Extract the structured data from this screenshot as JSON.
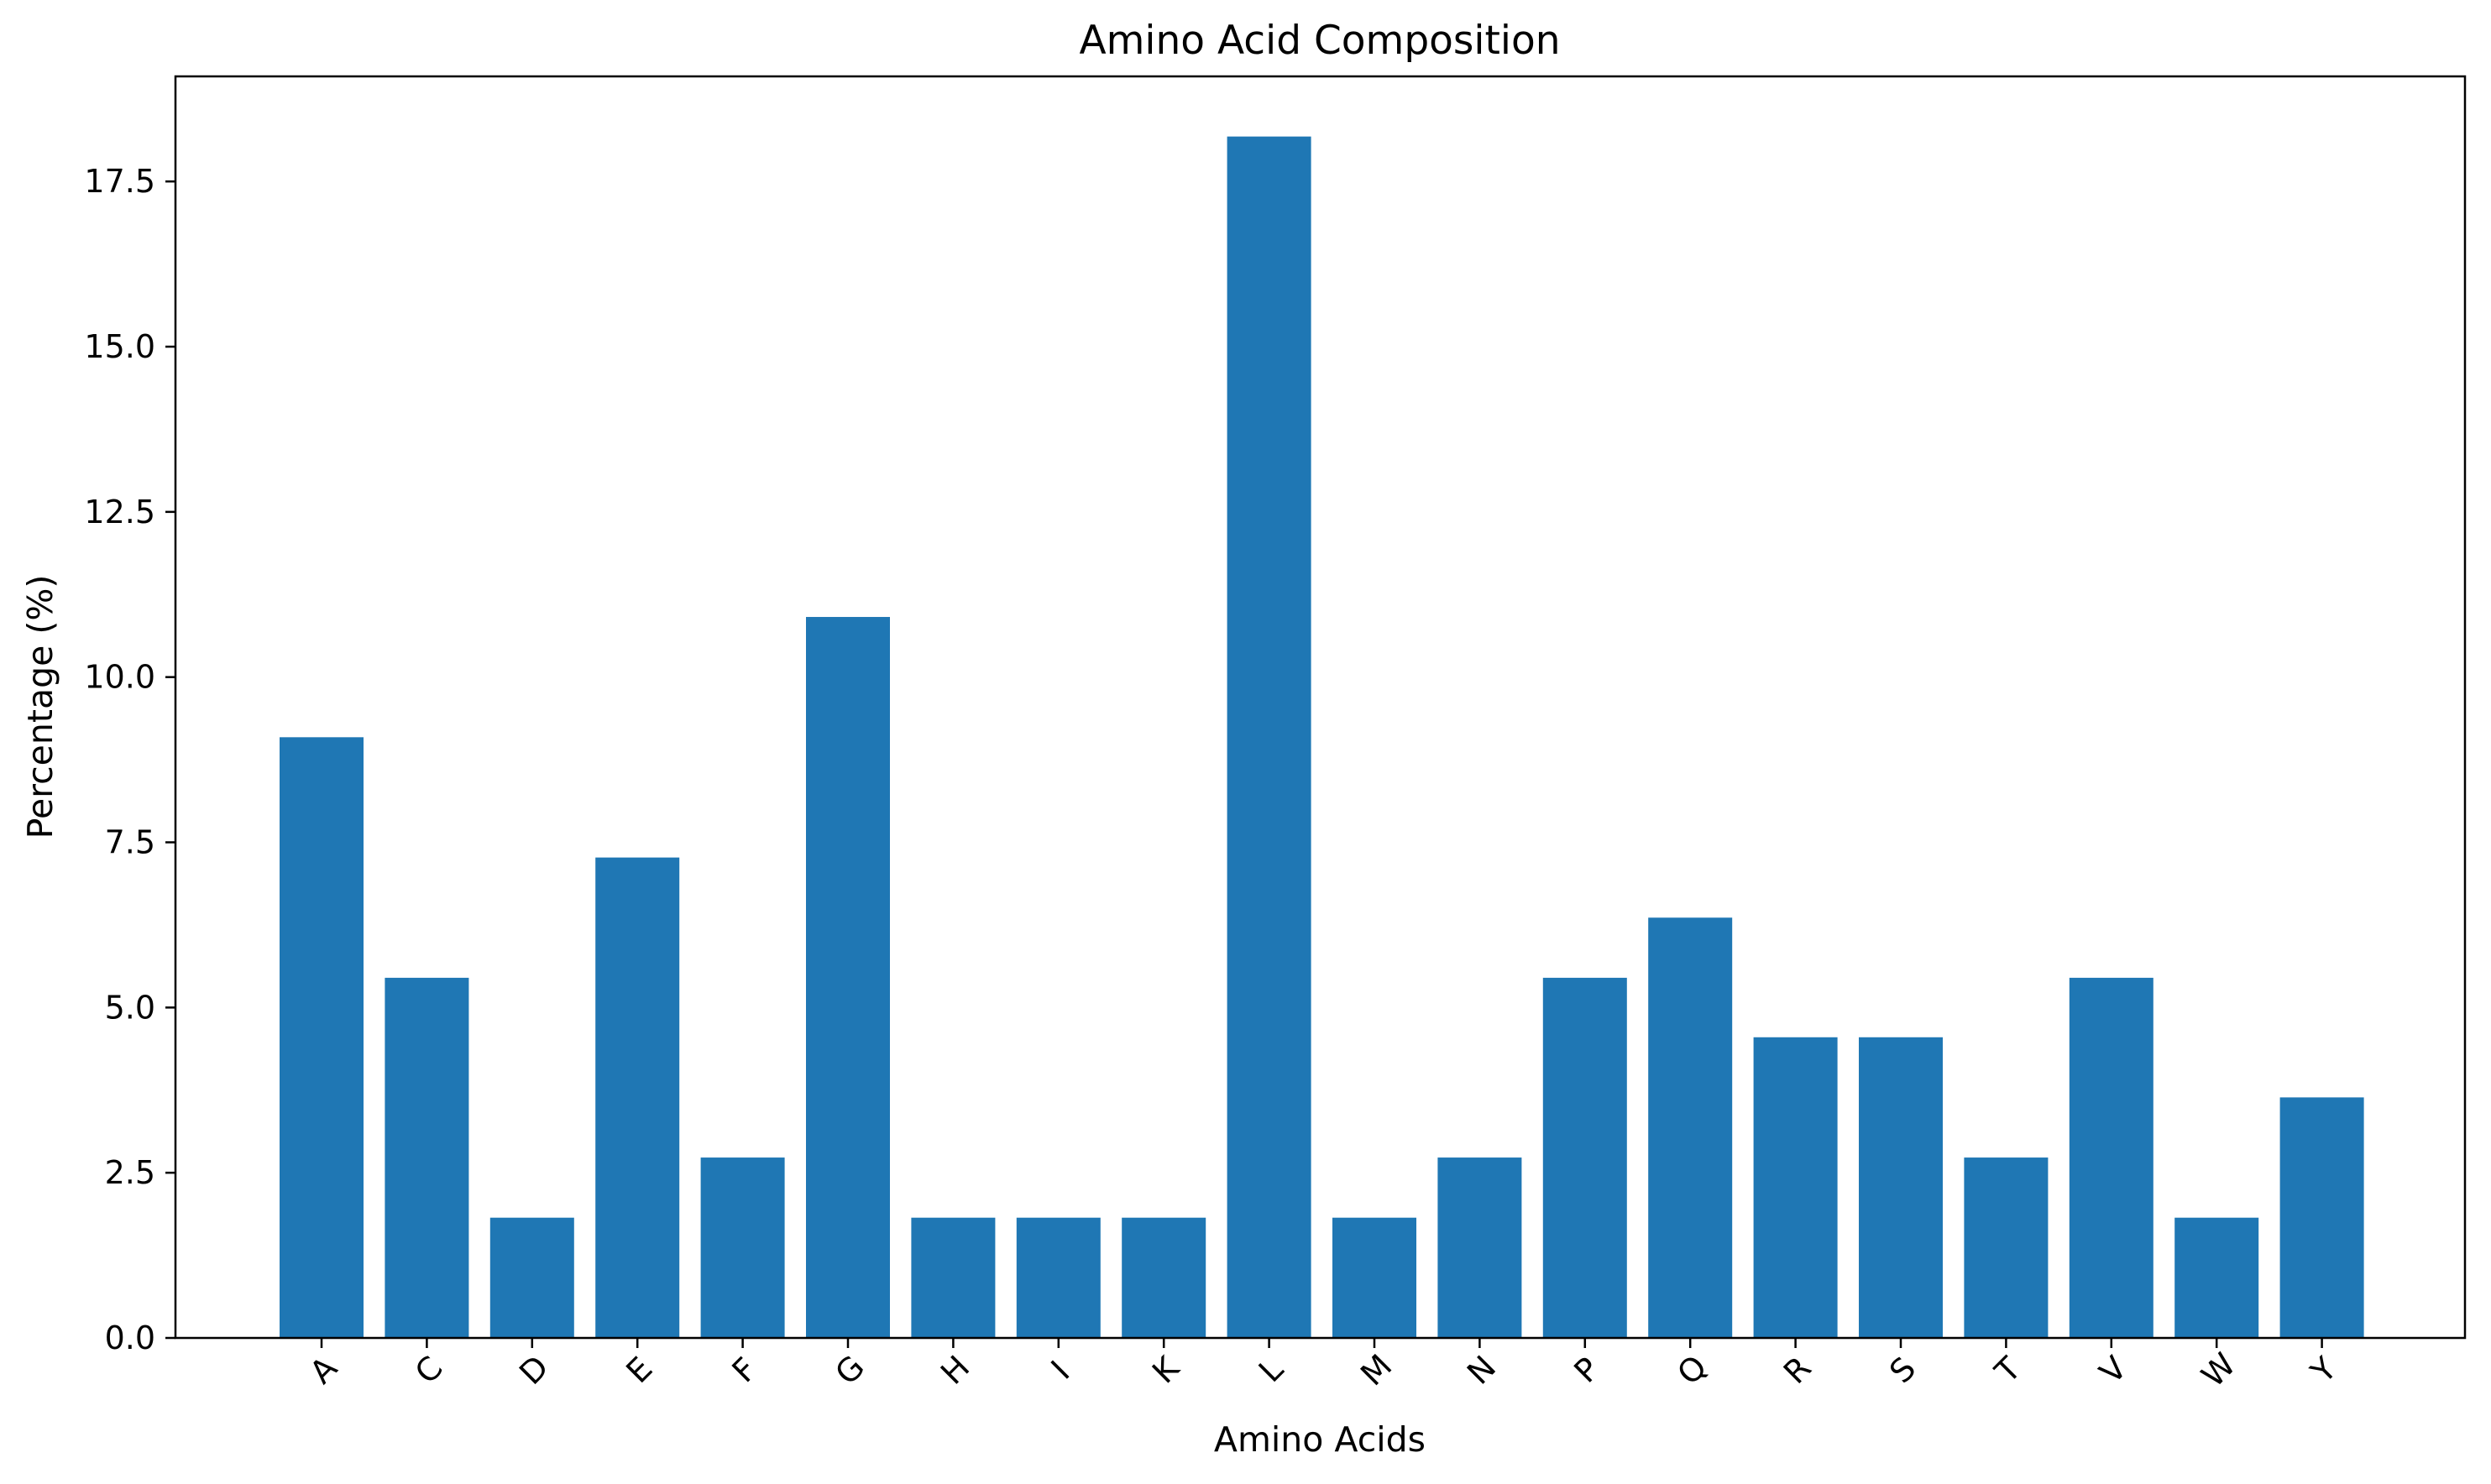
{
  "chart_data": {
    "type": "bar",
    "title": "Amino Acid Composition",
    "xlabel": "Amino Acids",
    "ylabel": "Percentage (%)",
    "categories": [
      "A",
      "C",
      "D",
      "E",
      "F",
      "G",
      "H",
      "I",
      "K",
      "L",
      "M",
      "N",
      "P",
      "Q",
      "R",
      "S",
      "T",
      "V",
      "W",
      "Y"
    ],
    "values": [
      9.09,
      5.45,
      1.82,
      7.27,
      2.73,
      10.91,
      1.82,
      1.82,
      1.82,
      18.18,
      1.82,
      2.73,
      5.45,
      6.36,
      4.55,
      4.55,
      2.73,
      5.45,
      1.82,
      3.64
    ],
    "ylim": [
      0,
      19.09
    ],
    "yticks": [
      "0.0",
      "2.5",
      "5.0",
      "7.5",
      "10.0",
      "12.5",
      "15.0",
      "17.5"
    ],
    "grid": false,
    "legend": "none",
    "bar_color": "#1f77b4",
    "x_tick_rotation_deg": 45
  }
}
